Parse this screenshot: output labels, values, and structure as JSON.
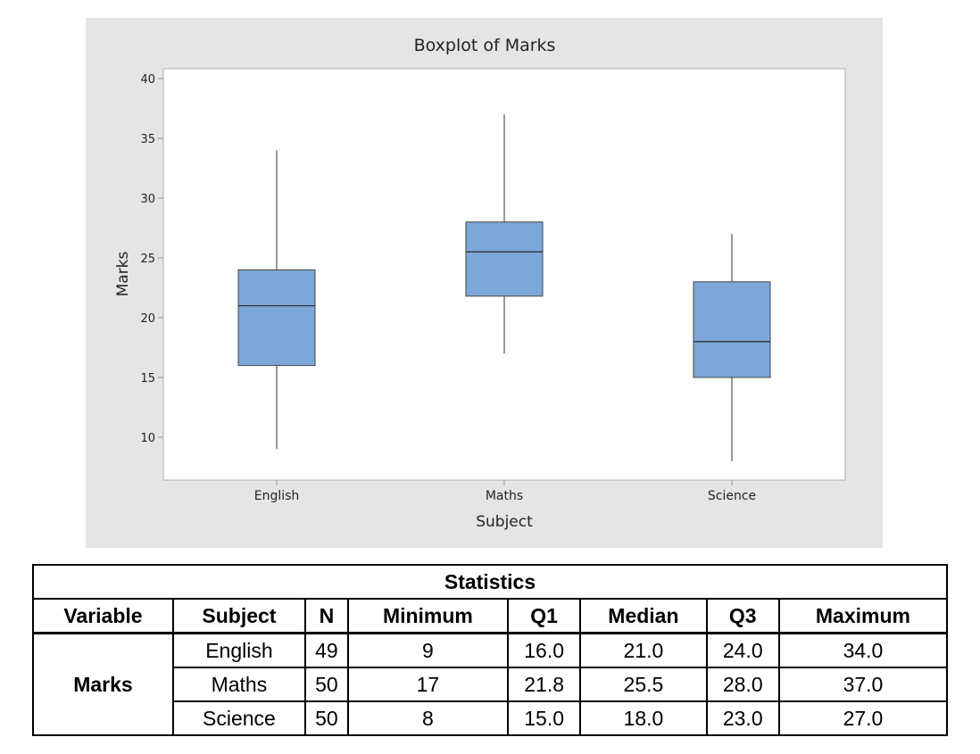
{
  "chart_data": {
    "type": "boxplot",
    "title": "Boxplot of Marks",
    "xlabel": "Subject",
    "ylabel": "Marks",
    "ylim": [
      6.9,
      40.8
    ],
    "yticks": [
      10,
      15,
      20,
      25,
      30,
      35,
      40
    ],
    "categories": [
      "English",
      "Maths",
      "Science"
    ],
    "boxes": [
      {
        "category": "English",
        "min": 9,
        "q1": 16.0,
        "median": 21.0,
        "q3": 24.0,
        "max": 34.0
      },
      {
        "category": "Maths",
        "min": 17,
        "q1": 21.8,
        "median": 25.5,
        "q3": 28.0,
        "max": 37.0
      },
      {
        "category": "Science",
        "min": 8,
        "q1": 15.0,
        "median": 18.0,
        "q3": 23.0,
        "max": 27.0
      }
    ],
    "colors": {
      "box": "#7da7d9",
      "background": "#e5e5e5",
      "plot": "#ffffff"
    },
    "grid": false
  },
  "table": {
    "title": "Statistics",
    "headers": [
      "Variable",
      "Subject",
      "N",
      "Minimum",
      "Q1",
      "Median",
      "Q3",
      "Maximum"
    ],
    "variable": "Marks",
    "rows": [
      [
        "English",
        "49",
        "9",
        "16.0",
        "21.0",
        "24.0",
        "34.0"
      ],
      [
        "Maths",
        "50",
        "17",
        "21.8",
        "25.5",
        "28.0",
        "37.0"
      ],
      [
        "Science",
        "50",
        "8",
        "15.0",
        "18.0",
        "23.0",
        "27.0"
      ]
    ]
  }
}
